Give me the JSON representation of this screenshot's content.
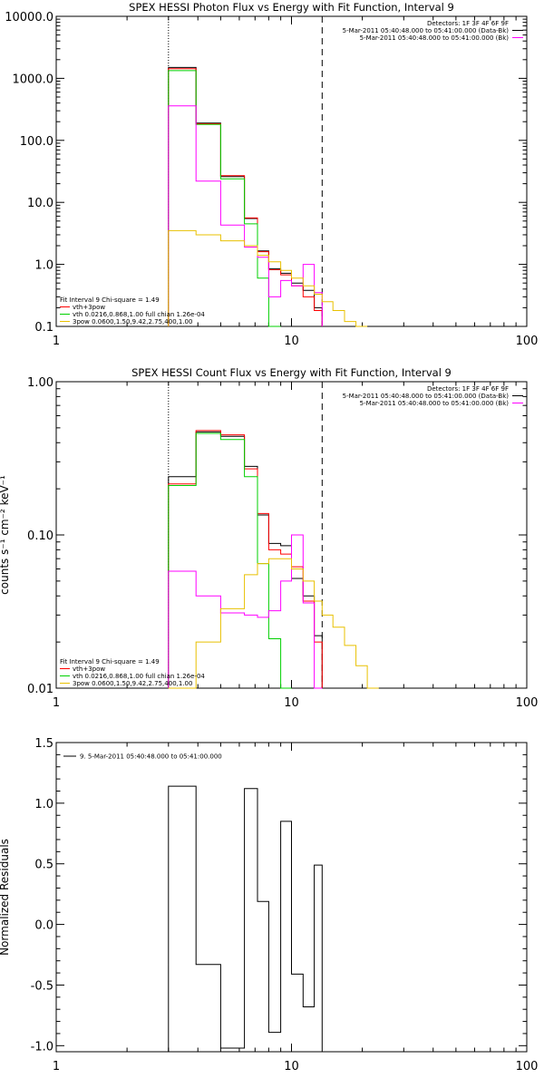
{
  "colors": {
    "black": "#000000",
    "red": "#ff0000",
    "green": "#00d000",
    "magenta": "#ff00ff",
    "yellow": "#e8c000"
  },
  "chart_data": [
    {
      "type": "line",
      "title": "SPEX HESSI Photon Flux vs Energy with Fit Function, Interval 9",
      "xscale": "log",
      "yscale": "log",
      "xlim": [
        1,
        100
      ],
      "ylim": [
        0.1,
        10000
      ],
      "xticks": [
        {
          "v": 1,
          "label": "1"
        },
        {
          "v": 10,
          "label": "10"
        },
        {
          "v": 100,
          "label": "100"
        }
      ],
      "yticks": [
        {
          "v": 0.1,
          "label": "0.1"
        },
        {
          "v": 1,
          "label": "1.0"
        },
        {
          "v": 10,
          "label": "10.0"
        },
        {
          "v": 100,
          "label": "100.0"
        },
        {
          "v": 1000,
          "label": "1000.0"
        },
        {
          "v": 10000,
          "label": "10000.0"
        }
      ],
      "vlines": [
        {
          "x": 3.0,
          "style": "dotted"
        },
        {
          "x": 13.5,
          "style": "dashed"
        }
      ],
      "info_lines": [
        "Detectors: 1F 3F 4F 6F 9F",
        "5-Mar-2011 05:40:48.000 to 05:41:00.000 (Data-Bk)",
        "5-Mar-2011 05:40:48.000 to 05:41:00.000 (Bk)"
      ],
      "info_colors": [
        "black",
        "black",
        "magenta"
      ],
      "fit_lines": [
        "Fit Interval 9   Chi-square = 1.49",
        "vth+3pow",
        "vth 0.0216,0.868,1.00  full chian 1.26e-04",
        "3pow 0.0600,1.50,9.42,2.75,400,1.00"
      ],
      "fit_colors": [
        "black",
        "red",
        "green",
        "yellow"
      ],
      "edges": [
        3.0,
        3.93,
        5.0,
        6.31,
        7.17,
        8.0,
        9.0,
        10.0,
        11.2,
        12.5,
        13.5,
        15.0,
        16.8,
        18.8,
        21.0
      ],
      "series": [
        {
          "color": "black",
          "values": [
            1500,
            190,
            26,
            5.5,
            1.65,
            0.85,
            0.72,
            0.5,
            0.38,
            0.2
          ]
        },
        {
          "color": "red",
          "values": [
            1430,
            185,
            27,
            5.6,
            1.6,
            0.82,
            0.68,
            0.45,
            0.3,
            0.18
          ]
        },
        {
          "color": "green",
          "values": [
            1330,
            180,
            24,
            4.5,
            0.6,
            0.05
          ]
        },
        {
          "color": "magenta",
          "values": [
            360,
            22,
            4.3,
            1.9,
            1.3,
            0.3,
            0.55,
            0.45,
            1.0,
            0.35
          ]
        },
        {
          "color": "yellow",
          "values": [
            3.5,
            3.0,
            2.4,
            2.0,
            1.4,
            1.1,
            0.8,
            0.6,
            0.45,
            0.33,
            0.25,
            0.18,
            0.12,
            0.09
          ]
        }
      ]
    },
    {
      "type": "line",
      "title": "SPEX HESSI Count Flux vs Energy with Fit Function, Interval 9",
      "ylabel": "counts s⁻¹ cm⁻² keV⁻¹",
      "xscale": "log",
      "yscale": "log",
      "xlim": [
        1,
        100
      ],
      "ylim": [
        0.01,
        1.0
      ],
      "xticks": [
        {
          "v": 1,
          "label": "1"
        },
        {
          "v": 10,
          "label": "10"
        },
        {
          "v": 100,
          "label": "100"
        }
      ],
      "yticks": [
        {
          "v": 0.01,
          "label": "0.01"
        },
        {
          "v": 0.1,
          "label": "0.10"
        },
        {
          "v": 1,
          "label": "1.00"
        }
      ],
      "vlines": [
        {
          "x": 3.0,
          "style": "dotted"
        },
        {
          "x": 13.5,
          "style": "dashed"
        }
      ],
      "info_lines": [
        "Detectors: 1F 3F 4F 6F 9F",
        "5-Mar-2011 05:40:48.000 to 05:41:00.000 (Data-Bk)",
        "5-Mar-2011 05:40:48.000 to 05:41:00.000 (Bk)"
      ],
      "info_colors": [
        "black",
        "black",
        "magenta"
      ],
      "fit_lines": [
        "Fit Interval 9   Chi-square = 1.49",
        "vth+3pow",
        "vth 0.0216,0.868,1.00  full chian 1.26e-04",
        "3pow 0.0600,1.50,9.42,2.75,400,1.00"
      ],
      "fit_colors": [
        "black",
        "red",
        "green",
        "yellow"
      ],
      "edges": [
        3.0,
        3.93,
        5.0,
        6.31,
        7.17,
        8.0,
        9.0,
        10.0,
        11.2,
        12.5,
        13.5,
        15.0,
        16.8,
        18.8,
        21.0,
        23.5
      ],
      "series": [
        {
          "color": "black",
          "values": [
            0.24,
            0.47,
            0.44,
            0.28,
            0.135,
            0.088,
            0.085,
            0.052,
            0.04,
            0.022
          ]
        },
        {
          "color": "red",
          "values": [
            0.215,
            0.48,
            0.45,
            0.27,
            0.138,
            0.08,
            0.075,
            0.062,
            0.037,
            0.02
          ]
        },
        {
          "color": "green",
          "values": [
            0.21,
            0.46,
            0.42,
            0.24,
            0.065,
            0.021,
            0.008
          ]
        },
        {
          "color": "magenta",
          "values": [
            0.058,
            0.04,
            0.031,
            0.03,
            0.029,
            0.032,
            0.05,
            0.1,
            0.036,
            0.008
          ]
        },
        {
          "color": "yellow",
          "values": [
            0.005,
            0.02,
            0.033,
            0.055,
            0.065,
            0.07,
            0.07,
            0.06,
            0.05,
            0.037,
            0.03,
            0.025,
            0.019,
            0.014,
            0.01
          ]
        }
      ]
    },
    {
      "type": "line",
      "ylabel": "Normalized Residuals",
      "xscale": "log",
      "yscale": "linear",
      "xlim": [
        1,
        100
      ],
      "ylim": [
        -1.05,
        1.5
      ],
      "xticks": [
        {
          "v": 1,
          "label": "1"
        },
        {
          "v": 10,
          "label": "10"
        },
        {
          "v": 100,
          "label": "100"
        }
      ],
      "yticks": [
        {
          "v": -1,
          "label": "-1.0"
        },
        {
          "v": -0.5,
          "label": "-0.5"
        },
        {
          "v": 0,
          "label": "0.0"
        },
        {
          "v": 0.5,
          "label": "0.5"
        },
        {
          "v": 1,
          "label": "1.0"
        },
        {
          "v": 1.5,
          "label": "1.5"
        }
      ],
      "legend": "9. 5-Mar-2011 05:40:48.000 to 05:41:00.000",
      "edges": [
        3.0,
        3.93,
        5.0,
        6.31,
        7.17,
        8.0,
        9.0,
        10.0,
        11.2,
        12.5,
        13.5
      ],
      "series": [
        {
          "color": "black",
          "values": [
            1.14,
            -0.33,
            -1.02,
            1.12,
            0.19,
            -0.89,
            0.85,
            -0.41,
            -0.68,
            0.49
          ]
        }
      ]
    }
  ]
}
